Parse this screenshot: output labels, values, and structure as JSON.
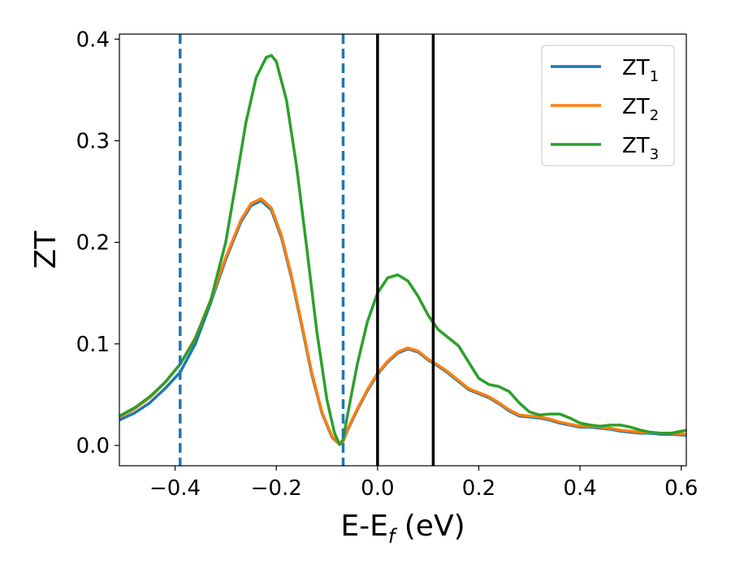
{
  "chart_data": {
    "type": "line",
    "title": "",
    "xlabel": "E-E_f (eV)",
    "xlabel_parts": {
      "main": "E-E",
      "sub": "f",
      "unit": " (eV)"
    },
    "ylabel": "ZT",
    "xlim": [
      -0.51,
      0.61
    ],
    "ylim": [
      -0.02,
      0.405
    ],
    "xticks": [
      -0.4,
      -0.2,
      0.0,
      0.2,
      0.4,
      0.6
    ],
    "xtick_labels": [
      "−0.4",
      "−0.2",
      "0.0",
      "0.2",
      "0.4",
      "0.6"
    ],
    "yticks": [
      0.0,
      0.1,
      0.2,
      0.3,
      0.4
    ],
    "ytick_labels": [
      "0.0",
      "0.1",
      "0.2",
      "0.3",
      "0.4"
    ],
    "grid": false,
    "legend_position": "top-right",
    "vertical_lines": [
      {
        "x": -0.39,
        "style": "dashed",
        "color": "#1f77b4"
      },
      {
        "x": -0.068,
        "style": "dashed",
        "color": "#1f77b4"
      },
      {
        "x": 0.0,
        "style": "solid",
        "color": "#000000"
      },
      {
        "x": 0.11,
        "style": "solid",
        "color": "#000000"
      }
    ],
    "series": [
      {
        "name": "ZT_1",
        "label_main": "ZT",
        "label_sub": "1",
        "color": "#1f77b4",
        "points": [
          [
            -0.51,
            0.025
          ],
          [
            -0.48,
            0.032
          ],
          [
            -0.45,
            0.042
          ],
          [
            -0.42,
            0.056
          ],
          [
            -0.39,
            0.072
          ],
          [
            -0.36,
            0.1
          ],
          [
            -0.33,
            0.14
          ],
          [
            -0.3,
            0.183
          ],
          [
            -0.27,
            0.22
          ],
          [
            -0.25,
            0.236
          ],
          [
            -0.23,
            0.241
          ],
          [
            -0.21,
            0.232
          ],
          [
            -0.19,
            0.205
          ],
          [
            -0.17,
            0.165
          ],
          [
            -0.15,
            0.118
          ],
          [
            -0.13,
            0.07
          ],
          [
            -0.11,
            0.032
          ],
          [
            -0.09,
            0.008
          ],
          [
            -0.075,
            0.001
          ],
          [
            -0.068,
            0.004
          ],
          [
            -0.06,
            0.014
          ],
          [
            -0.04,
            0.035
          ],
          [
            -0.02,
            0.054
          ],
          [
            0.0,
            0.07
          ],
          [
            0.02,
            0.082
          ],
          [
            0.04,
            0.091
          ],
          [
            0.06,
            0.095
          ],
          [
            0.08,
            0.092
          ],
          [
            0.1,
            0.084
          ],
          [
            0.12,
            0.078
          ],
          [
            0.14,
            0.071
          ],
          [
            0.16,
            0.063
          ],
          [
            0.18,
            0.055
          ],
          [
            0.2,
            0.051
          ],
          [
            0.22,
            0.047
          ],
          [
            0.24,
            0.041
          ],
          [
            0.26,
            0.034
          ],
          [
            0.28,
            0.029
          ],
          [
            0.3,
            0.028
          ],
          [
            0.32,
            0.027
          ],
          [
            0.34,
            0.025
          ],
          [
            0.36,
            0.022
          ],
          [
            0.38,
            0.02
          ],
          [
            0.4,
            0.018
          ],
          [
            0.42,
            0.018
          ],
          [
            0.44,
            0.017
          ],
          [
            0.46,
            0.016
          ],
          [
            0.48,
            0.014
          ],
          [
            0.5,
            0.013
          ],
          [
            0.52,
            0.012
          ],
          [
            0.54,
            0.012
          ],
          [
            0.56,
            0.011
          ],
          [
            0.58,
            0.011
          ],
          [
            0.61,
            0.01
          ]
        ]
      },
      {
        "name": "ZT_2",
        "label_main": "ZT",
        "label_sub": "2",
        "color": "#ff7f0e",
        "points": [
          [
            -0.51,
            0.028
          ],
          [
            -0.48,
            0.036
          ],
          [
            -0.45,
            0.047
          ],
          [
            -0.42,
            0.062
          ],
          [
            -0.39,
            0.08
          ],
          [
            -0.36,
            0.106
          ],
          [
            -0.33,
            0.143
          ],
          [
            -0.3,
            0.185
          ],
          [
            -0.27,
            0.222
          ],
          [
            -0.25,
            0.238
          ],
          [
            -0.23,
            0.243
          ],
          [
            -0.21,
            0.234
          ],
          [
            -0.19,
            0.207
          ],
          [
            -0.17,
            0.167
          ],
          [
            -0.15,
            0.12
          ],
          [
            -0.13,
            0.072
          ],
          [
            -0.11,
            0.033
          ],
          [
            -0.09,
            0.009
          ],
          [
            -0.075,
            0.001
          ],
          [
            -0.068,
            0.004
          ],
          [
            -0.06,
            0.015
          ],
          [
            -0.04,
            0.036
          ],
          [
            -0.02,
            0.055
          ],
          [
            0.0,
            0.071
          ],
          [
            0.02,
            0.083
          ],
          [
            0.04,
            0.092
          ],
          [
            0.06,
            0.096
          ],
          [
            0.08,
            0.093
          ],
          [
            0.1,
            0.085
          ],
          [
            0.12,
            0.079
          ],
          [
            0.14,
            0.072
          ],
          [
            0.16,
            0.064
          ],
          [
            0.18,
            0.056
          ],
          [
            0.2,
            0.052
          ],
          [
            0.22,
            0.048
          ],
          [
            0.24,
            0.042
          ],
          [
            0.26,
            0.035
          ],
          [
            0.28,
            0.03
          ],
          [
            0.3,
            0.029
          ],
          [
            0.32,
            0.028
          ],
          [
            0.34,
            0.026
          ],
          [
            0.36,
            0.023
          ],
          [
            0.38,
            0.021
          ],
          [
            0.4,
            0.019
          ],
          [
            0.42,
            0.019
          ],
          [
            0.44,
            0.018
          ],
          [
            0.46,
            0.017
          ],
          [
            0.48,
            0.015
          ],
          [
            0.5,
            0.014
          ],
          [
            0.52,
            0.013
          ],
          [
            0.54,
            0.013
          ],
          [
            0.56,
            0.012
          ],
          [
            0.58,
            0.012
          ],
          [
            0.61,
            0.011
          ]
        ]
      },
      {
        "name": "ZT_3",
        "label_main": "ZT",
        "label_sub": "3",
        "color": "#2ca02c",
        "points": [
          [
            -0.51,
            0.029
          ],
          [
            -0.48,
            0.037
          ],
          [
            -0.45,
            0.048
          ],
          [
            -0.42,
            0.062
          ],
          [
            -0.39,
            0.08
          ],
          [
            -0.36,
            0.105
          ],
          [
            -0.33,
            0.142
          ],
          [
            -0.3,
            0.2
          ],
          [
            -0.28,
            0.258
          ],
          [
            -0.26,
            0.318
          ],
          [
            -0.24,
            0.362
          ],
          [
            -0.22,
            0.382
          ],
          [
            -0.21,
            0.384
          ],
          [
            -0.2,
            0.378
          ],
          [
            -0.18,
            0.34
          ],
          [
            -0.16,
            0.275
          ],
          [
            -0.14,
            0.195
          ],
          [
            -0.12,
            0.112
          ],
          [
            -0.1,
            0.045
          ],
          [
            -0.085,
            0.012
          ],
          [
            -0.075,
            0.001
          ],
          [
            -0.068,
            0.006
          ],
          [
            -0.06,
            0.028
          ],
          [
            -0.04,
            0.08
          ],
          [
            -0.02,
            0.122
          ],
          [
            0.0,
            0.15
          ],
          [
            0.02,
            0.165
          ],
          [
            0.04,
            0.168
          ],
          [
            0.06,
            0.162
          ],
          [
            0.08,
            0.147
          ],
          [
            0.1,
            0.128
          ],
          [
            0.12,
            0.114
          ],
          [
            0.14,
            0.106
          ],
          [
            0.16,
            0.098
          ],
          [
            0.18,
            0.082
          ],
          [
            0.2,
            0.066
          ],
          [
            0.22,
            0.06
          ],
          [
            0.24,
            0.058
          ],
          [
            0.26,
            0.053
          ],
          [
            0.28,
            0.042
          ],
          [
            0.3,
            0.033
          ],
          [
            0.32,
            0.03
          ],
          [
            0.34,
            0.031
          ],
          [
            0.36,
            0.031
          ],
          [
            0.38,
            0.027
          ],
          [
            0.4,
            0.022
          ],
          [
            0.42,
            0.02
          ],
          [
            0.44,
            0.019
          ],
          [
            0.46,
            0.02
          ],
          [
            0.48,
            0.02
          ],
          [
            0.5,
            0.018
          ],
          [
            0.52,
            0.015
          ],
          [
            0.54,
            0.013
          ],
          [
            0.56,
            0.012
          ],
          [
            0.58,
            0.012
          ],
          [
            0.61,
            0.015
          ]
        ]
      }
    ]
  }
}
